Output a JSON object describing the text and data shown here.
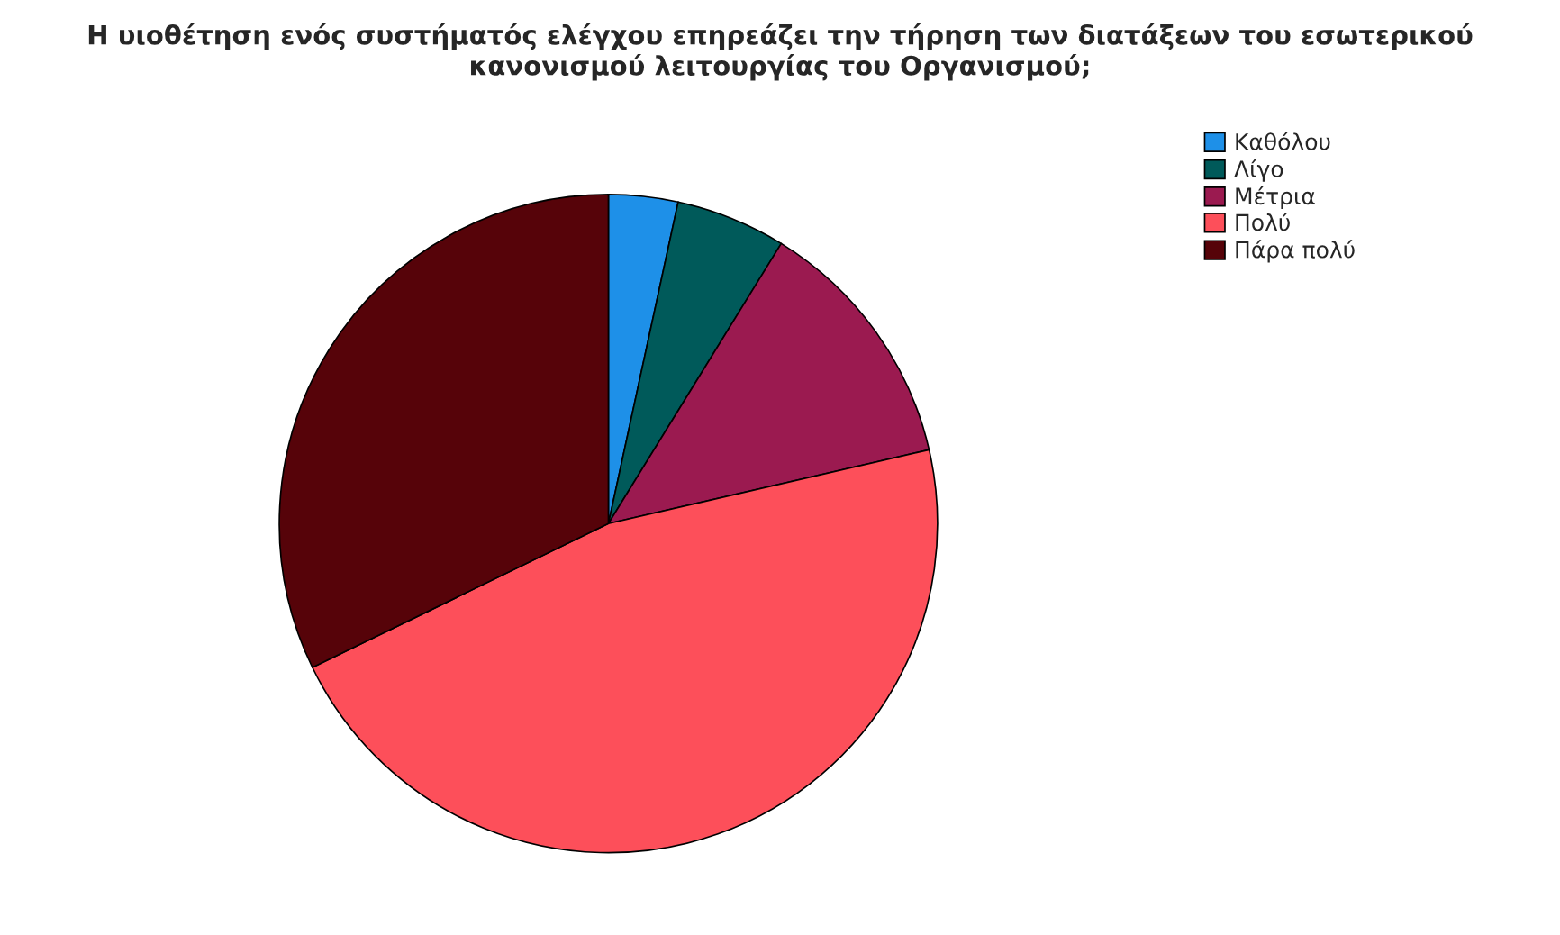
{
  "chart_data": {
    "type": "pie",
    "title": "Η υιοθέτηση ενός συστήματός ελέγχου επηρεάζει την τήρηση των διατάξεων του εσωτερικού κανονισμού λειτουργίας του Οργανισμού;",
    "categories": [
      "Καθόλου",
      "Λίγο",
      "Μέτρια",
      "Πολύ",
      "Πάρα πολύ"
    ],
    "values": [
      3.4,
      5.4,
      12.6,
      46.4,
      32.2
    ],
    "colors": [
      "#1e90e8",
      "#005a5a",
      "#9b1a50",
      "#fd4f5a",
      "#560309"
    ],
    "legend": "top right"
  }
}
